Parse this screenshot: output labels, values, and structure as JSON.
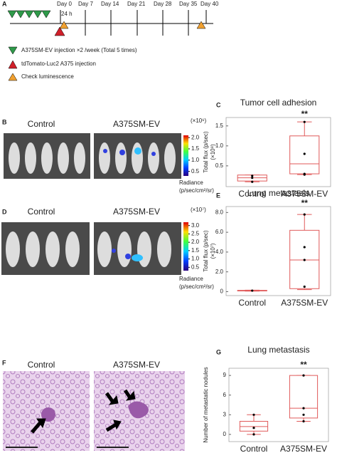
{
  "panel_a": {
    "letter": "A",
    "label_24h": "24 h",
    "days": [
      "Day 0",
      "Day 7",
      "Day 14",
      "Day 21",
      "Day 28",
      "Day 35",
      "Day 40"
    ],
    "legend": [
      "A375SM-EV injection ×2 /week (Total 5 times)",
      "tdTomato-Luc2 A375 injection",
      "Check luminescence"
    ]
  },
  "panel_b": {
    "letter": "B",
    "groups": [
      "Control",
      "A375SM-EV"
    ],
    "colorbar": {
      "unit": "(×10⁶)",
      "lim": [
        0.3,
        2.1
      ],
      "ticks": [
        {
          "value": 2,
          "label": "2.0"
        },
        {
          "value": 1.5,
          "label": "1.5"
        },
        {
          "value": 1,
          "label": "1.0"
        },
        {
          "value": 0.5,
          "label": "0.5"
        }
      ],
      "label": [
        "Radiance",
        "(p/sec/cm²/sr)"
      ]
    }
  },
  "panel_d": {
    "letter": "D",
    "groups": [
      "Control",
      "A375SM-EV"
    ],
    "colorbar": {
      "unit": "(×10⁷)",
      "lim": [
        0.3,
        3.2
      ],
      "ticks": [
        {
          "value": 3,
          "label": "3.0"
        },
        {
          "value": 2.5,
          "label": "2.5"
        },
        {
          "value": 2,
          "label": "2.0"
        },
        {
          "value": 1.5,
          "label": "1.5"
        },
        {
          "value": 1,
          "label": "1.0"
        },
        {
          "value": 0.5,
          "label": "0.5"
        }
      ],
      "label": [
        "Radiance",
        "(p/sec/cm²/sr)"
      ]
    }
  },
  "panel_f": {
    "letter": "F",
    "groups": [
      "Control",
      "A375SM-EV"
    ]
  },
  "chart_data": [
    {
      "type": "box",
      "letter": "C",
      "title": "Tumor cell adhesion",
      "ylabel": "Total flux (p/sec)",
      "yunit": "(×10⁸)",
      "ylim": [
        -0.02,
        1.71
      ],
      "yticks": [
        {
          "value": 0.5,
          "label": "0.5"
        },
        {
          "value": 1,
          "label": "1.0"
        },
        {
          "value": 1.5,
          "label": "1.5"
        }
      ],
      "categories": [
        "Control",
        "A375SM-EV"
      ],
      "color": "#e05a5a",
      "significance": "**",
      "boxes": [
        {
          "min": 0.1,
          "q1": 0.12,
          "median": 0.2,
          "q3": 0.27,
          "max": 0.27,
          "points": [
            0.25,
            0.2,
            0.1
          ]
        },
        {
          "min": 0.28,
          "q1": 0.3,
          "median": 0.55,
          "q3": 1.25,
          "max": 1.6,
          "points": [
            1.6,
            0.8,
            0.3,
            0.28
          ]
        }
      ]
    },
    {
      "type": "box",
      "letter": "E",
      "title": "Lung metastasis",
      "ylabel": "Total flux (p/sec)",
      "yunit": "(×10⁷)",
      "ylim": [
        -0.4,
        8.6
      ],
      "yticks": [
        0,
        {
          "value": 2,
          "label": "2.0"
        },
        {
          "value": 4,
          "label": "4.0"
        },
        {
          "value": 6,
          "label": "6.0"
        },
        {
          "value": 8,
          "label": "8.0"
        }
      ],
      "categories": [
        "Control",
        "A375SM-EV"
      ],
      "color": "#e05a5a",
      "significance": "**",
      "boxes": [
        {
          "min": 0.05,
          "q1": 0.07,
          "median": 0.1,
          "q3": 0.13,
          "max": 0.15,
          "points": [
            0.1
          ]
        },
        {
          "min": 0.2,
          "q1": 0.3,
          "median": 3.2,
          "q3": 6.2,
          "max": 7.8,
          "points": [
            7.8,
            4.5,
            3.2,
            0.5
          ]
        }
      ]
    },
    {
      "type": "box",
      "letter": "G",
      "title": "Lung metastasis",
      "ylabel": "Number of metastatic nodules",
      "ylim": [
        -1.1,
        10.1
      ],
      "yticks": [
        0,
        3,
        6,
        9
      ],
      "categories": [
        "Control",
        "A375SM-EV"
      ],
      "color": "#e05a5a",
      "significance": "**",
      "boxes": [
        {
          "min": 0,
          "q1": 0.5,
          "median": 1.2,
          "q3": 2,
          "max": 3,
          "points": [
            3,
            1,
            0
          ]
        },
        {
          "min": 2,
          "q1": 2.5,
          "median": 4,
          "q3": 9,
          "max": 9,
          "points": [
            9,
            4,
            3,
            2
          ]
        }
      ]
    }
  ]
}
